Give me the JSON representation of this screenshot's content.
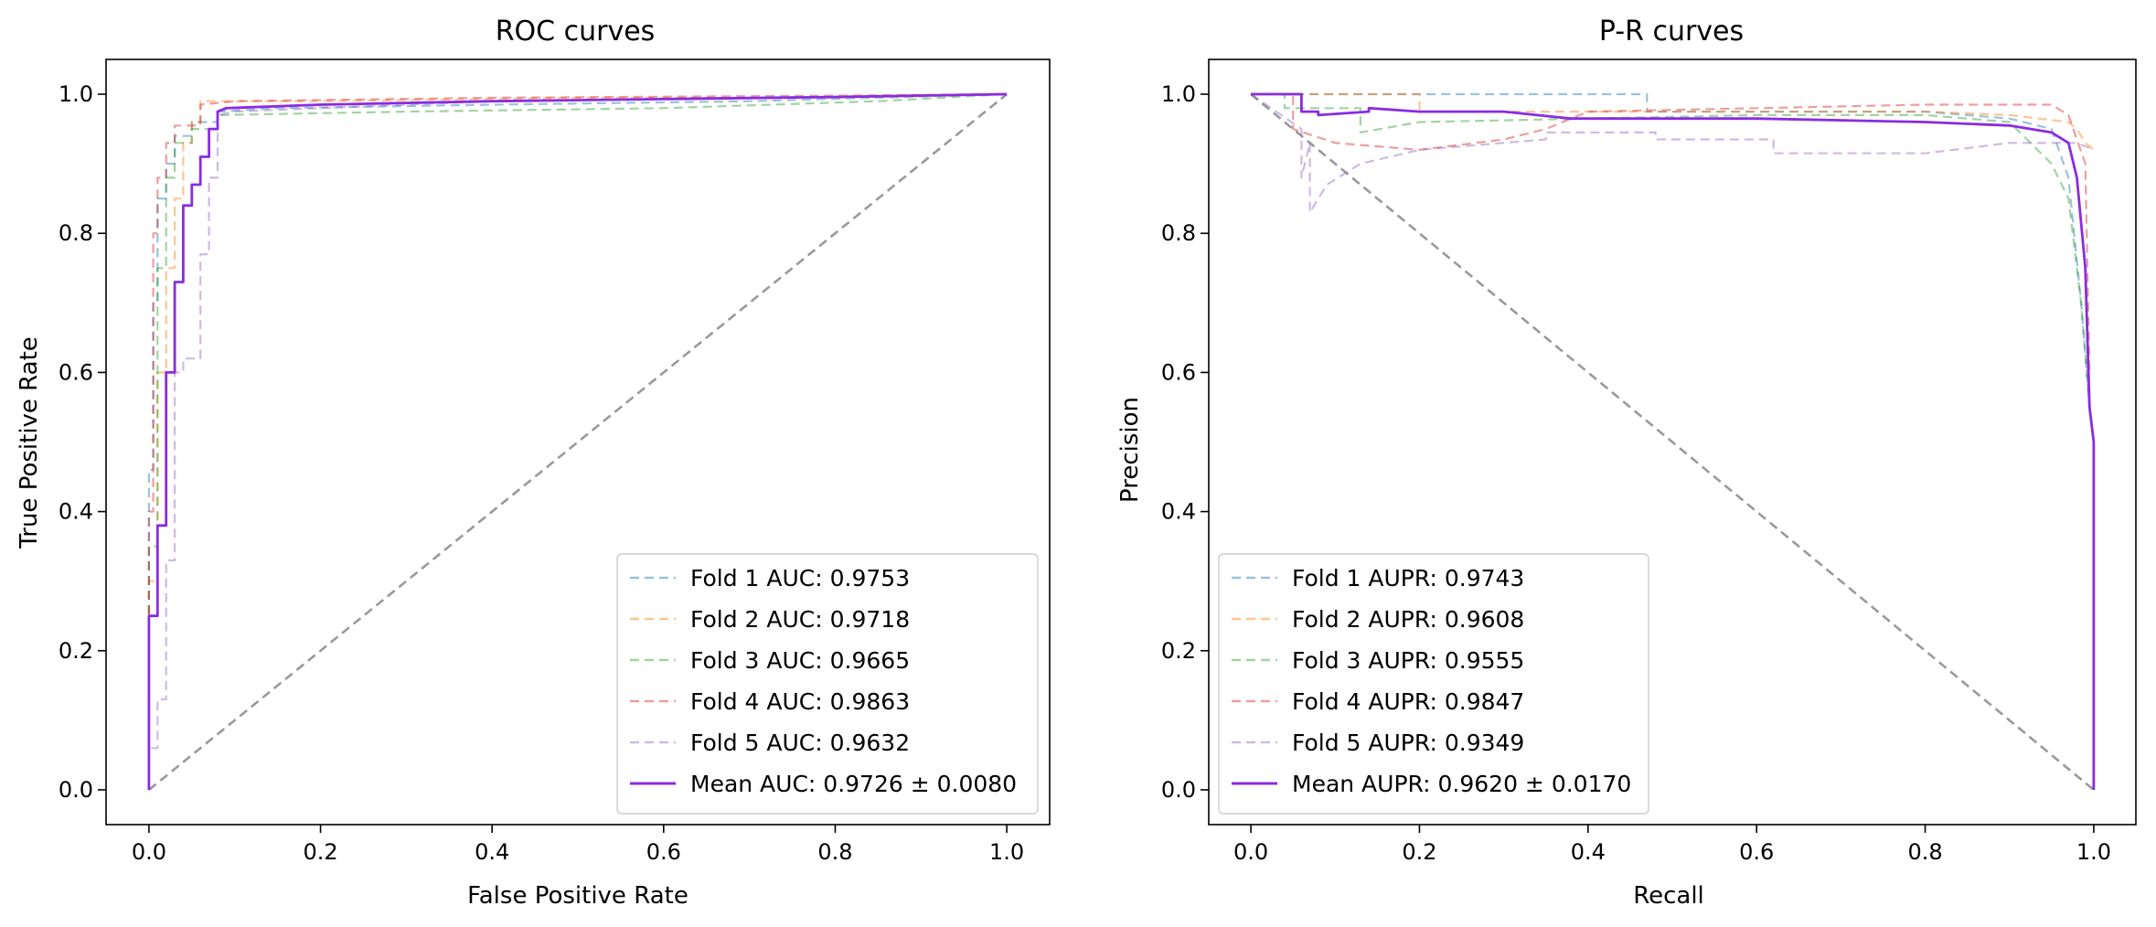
{
  "chart_data": [
    {
      "type": "line",
      "title": "ROC curves",
      "xlabel": "False Positive Rate",
      "ylabel": "True Positive Rate",
      "xlim": [
        -0.05,
        1.05
      ],
      "ylim": [
        -0.05,
        1.05
      ],
      "xticks": [
        0.0,
        0.2,
        0.4,
        0.6,
        0.8,
        1.0
      ],
      "yticks": [
        0.0,
        0.2,
        0.4,
        0.6,
        0.8,
        1.0
      ],
      "xtick_labels": [
        "0.0",
        "0.2",
        "0.4",
        "0.6",
        "0.8",
        "1.0"
      ],
      "ytick_labels": [
        "0.0",
        "0.2",
        "0.4",
        "0.6",
        "0.8",
        "1.0"
      ],
      "legend_position": "lower-right",
      "reference_line": {
        "x": [
          0,
          1
        ],
        "y": [
          0,
          1
        ],
        "color": "#999999"
      },
      "series": [
        {
          "name": "Fold 1",
          "label": "Fold 1 AUC: 0.9753",
          "color": "#1f77b4",
          "style": "dashed",
          "x": [
            0,
            0,
            0.005,
            0.005,
            0.01,
            0.01,
            0.02,
            0.02,
            0.03,
            0.03,
            0.05,
            0.05,
            0.08,
            0.08,
            0.15,
            0.4,
            0.7,
            1.0
          ],
          "y": [
            0,
            0.46,
            0.46,
            0.7,
            0.7,
            0.85,
            0.85,
            0.9,
            0.9,
            0.94,
            0.94,
            0.96,
            0.96,
            0.975,
            0.98,
            0.985,
            0.99,
            1.0
          ]
        },
        {
          "name": "Fold 2",
          "label": "Fold 2 AUC: 0.9718",
          "color": "#ff7f0e",
          "style": "dashed",
          "x": [
            0,
            0,
            0.01,
            0.01,
            0.02,
            0.02,
            0.03,
            0.03,
            0.04,
            0.04,
            0.05,
            0.05,
            0.06,
            0.06,
            0.2,
            0.5,
            0.8,
            1.0
          ],
          "y": [
            0,
            0.3,
            0.3,
            0.6,
            0.6,
            0.75,
            0.75,
            0.85,
            0.85,
            0.93,
            0.93,
            0.96,
            0.96,
            0.99,
            0.99,
            0.995,
            0.995,
            1.0
          ]
        },
        {
          "name": "Fold 3",
          "label": "Fold 3 AUC: 0.9665",
          "color": "#2ca02c",
          "style": "dashed",
          "x": [
            0,
            0,
            0.01,
            0.01,
            0.02,
            0.02,
            0.03,
            0.03,
            0.05,
            0.05,
            0.08,
            0.08,
            0.3,
            0.6,
            0.85,
            1.0
          ],
          "y": [
            0,
            0.35,
            0.35,
            0.75,
            0.75,
            0.88,
            0.88,
            0.93,
            0.93,
            0.95,
            0.95,
            0.97,
            0.975,
            0.98,
            0.99,
            1.0
          ]
        },
        {
          "name": "Fold 4",
          "label": "Fold 4 AUC: 0.9863",
          "color": "#d62728",
          "style": "dashed",
          "x": [
            0,
            0,
            0.005,
            0.005,
            0.01,
            0.01,
            0.02,
            0.02,
            0.03,
            0.03,
            0.06,
            0.06,
            0.1,
            0.4,
            0.8,
            1.0
          ],
          "y": [
            0,
            0.4,
            0.4,
            0.8,
            0.8,
            0.88,
            0.88,
            0.93,
            0.93,
            0.955,
            0.955,
            0.985,
            0.99,
            0.995,
            0.998,
            1.0
          ]
        },
        {
          "name": "Fold 5",
          "label": "Fold 5 AUC: 0.9632",
          "color": "#9467bd",
          "style": "dashed",
          "x": [
            0,
            0,
            0.01,
            0.01,
            0.02,
            0.02,
            0.03,
            0.03,
            0.04,
            0.04,
            0.06,
            0.06,
            0.07,
            0.07,
            0.08,
            0.08,
            0.1,
            0.4,
            0.7,
            1.0
          ],
          "y": [
            0,
            0.06,
            0.06,
            0.13,
            0.13,
            0.33,
            0.33,
            0.6,
            0.6,
            0.62,
            0.62,
            0.77,
            0.77,
            0.88,
            0.88,
            0.97,
            0.975,
            0.99,
            0.995,
            1.0
          ]
        },
        {
          "name": "Mean",
          "label": "Mean AUC: 0.9726 ± 0.0080",
          "color": "#8a2be2",
          "style": "solid",
          "x": [
            0,
            0,
            0.01,
            0.01,
            0.02,
            0.02,
            0.03,
            0.03,
            0.04,
            0.04,
            0.05,
            0.05,
            0.06,
            0.06,
            0.07,
            0.07,
            0.08,
            0.08,
            0.09,
            0.2,
            0.4,
            0.6,
            0.8,
            1.0
          ],
          "y": [
            0,
            0.25,
            0.25,
            0.38,
            0.38,
            0.6,
            0.6,
            0.73,
            0.73,
            0.84,
            0.84,
            0.87,
            0.87,
            0.91,
            0.91,
            0.95,
            0.95,
            0.975,
            0.98,
            0.985,
            0.99,
            0.993,
            0.996,
            1.0
          ]
        }
      ]
    },
    {
      "type": "line",
      "title": "P-R curves",
      "xlabel": "Recall",
      "ylabel": "Precision",
      "xlim": [
        -0.05,
        1.05
      ],
      "ylim": [
        -0.05,
        1.05
      ],
      "xticks": [
        0.0,
        0.2,
        0.4,
        0.6,
        0.8,
        1.0
      ],
      "yticks": [
        0.0,
        0.2,
        0.4,
        0.6,
        0.8,
        1.0
      ],
      "xtick_labels": [
        "0.0",
        "0.2",
        "0.4",
        "0.6",
        "0.8",
        "1.0"
      ],
      "ytick_labels": [
        "0.0",
        "0.2",
        "0.4",
        "0.6",
        "0.8",
        "1.0"
      ],
      "legend_position": "lower-left",
      "reference_line": {
        "x": [
          0,
          1
        ],
        "y": [
          1,
          0
        ],
        "color": "#999999"
      },
      "series": [
        {
          "name": "Fold 1",
          "label": "Fold 1 AUPR: 0.9743",
          "color": "#1f77b4",
          "style": "dashed",
          "x": [
            0,
            0.47,
            0.47,
            0.7,
            0.8,
            0.9,
            0.95,
            0.97,
            0.985,
            0.995
          ],
          "y": [
            1.0,
            1.0,
            0.975,
            0.975,
            0.975,
            0.965,
            0.95,
            0.88,
            0.7,
            0.55
          ]
        },
        {
          "name": "Fold 2",
          "label": "Fold 2 AUPR: 0.9608",
          "color": "#ff7f0e",
          "style": "dashed",
          "x": [
            0,
            0.2,
            0.2,
            0.5,
            0.8,
            0.9,
            0.97,
            0.98,
            0.99,
            1.0
          ],
          "y": [
            1.0,
            1.0,
            0.975,
            0.975,
            0.975,
            0.97,
            0.96,
            0.95,
            0.93,
            0.92
          ]
        },
        {
          "name": "Fold 3",
          "label": "Fold 3 AUPR: 0.9555",
          "color": "#2ca02c",
          "style": "dashed",
          "x": [
            0,
            0.04,
            0.04,
            0.13,
            0.13,
            0.2,
            0.4,
            0.6,
            0.8,
            0.9,
            0.95,
            0.97,
            0.985,
            0.995
          ],
          "y": [
            1.0,
            1.0,
            0.98,
            0.98,
            0.945,
            0.96,
            0.965,
            0.97,
            0.97,
            0.96,
            0.9,
            0.85,
            0.7,
            0.55
          ]
        },
        {
          "name": "Fold 4",
          "label": "Fold 4 AUPR: 0.9847",
          "color": "#d62728",
          "style": "dashed",
          "x": [
            0,
            0.05,
            0.05,
            0.1,
            0.2,
            0.3,
            0.35,
            0.4,
            0.6,
            0.8,
            0.95,
            0.97,
            0.99,
            0.995
          ],
          "y": [
            1.0,
            1.0,
            0.95,
            0.93,
            0.92,
            0.935,
            0.95,
            0.975,
            0.98,
            0.985,
            0.985,
            0.97,
            0.9,
            0.6
          ]
        },
        {
          "name": "Fold 5",
          "label": "Fold 5 AUPR: 0.9349",
          "color": "#9467bd",
          "style": "dashed",
          "x": [
            0,
            0.06,
            0.06,
            0.07,
            0.07,
            0.09,
            0.13,
            0.2,
            0.3,
            0.35,
            0.35,
            0.48,
            0.48,
            0.62,
            0.62,
            0.8,
            0.9,
            0.98,
            1.0
          ],
          "y": [
            1.0,
            0.95,
            0.88,
            0.93,
            0.83,
            0.87,
            0.9,
            0.92,
            0.93,
            0.935,
            0.945,
            0.945,
            0.935,
            0.935,
            0.915,
            0.915,
            0.93,
            0.93,
            0.92
          ]
        },
        {
          "name": "Mean",
          "label": "Mean AUPR: 0.9620 ± 0.0170",
          "color": "#8a2be2",
          "style": "solid",
          "x": [
            0,
            0.06,
            0.06,
            0.08,
            0.08,
            0.14,
            0.14,
            0.2,
            0.3,
            0.38,
            0.4,
            0.6,
            0.8,
            0.9,
            0.95,
            0.97,
            0.98,
            0.99,
            0.995,
            1.0,
            1.0
          ],
          "y": [
            1.0,
            1.0,
            0.975,
            0.975,
            0.97,
            0.975,
            0.98,
            0.975,
            0.975,
            0.965,
            0.965,
            0.965,
            0.96,
            0.955,
            0.945,
            0.93,
            0.88,
            0.75,
            0.55,
            0.5,
            0.0
          ]
        }
      ]
    }
  ]
}
